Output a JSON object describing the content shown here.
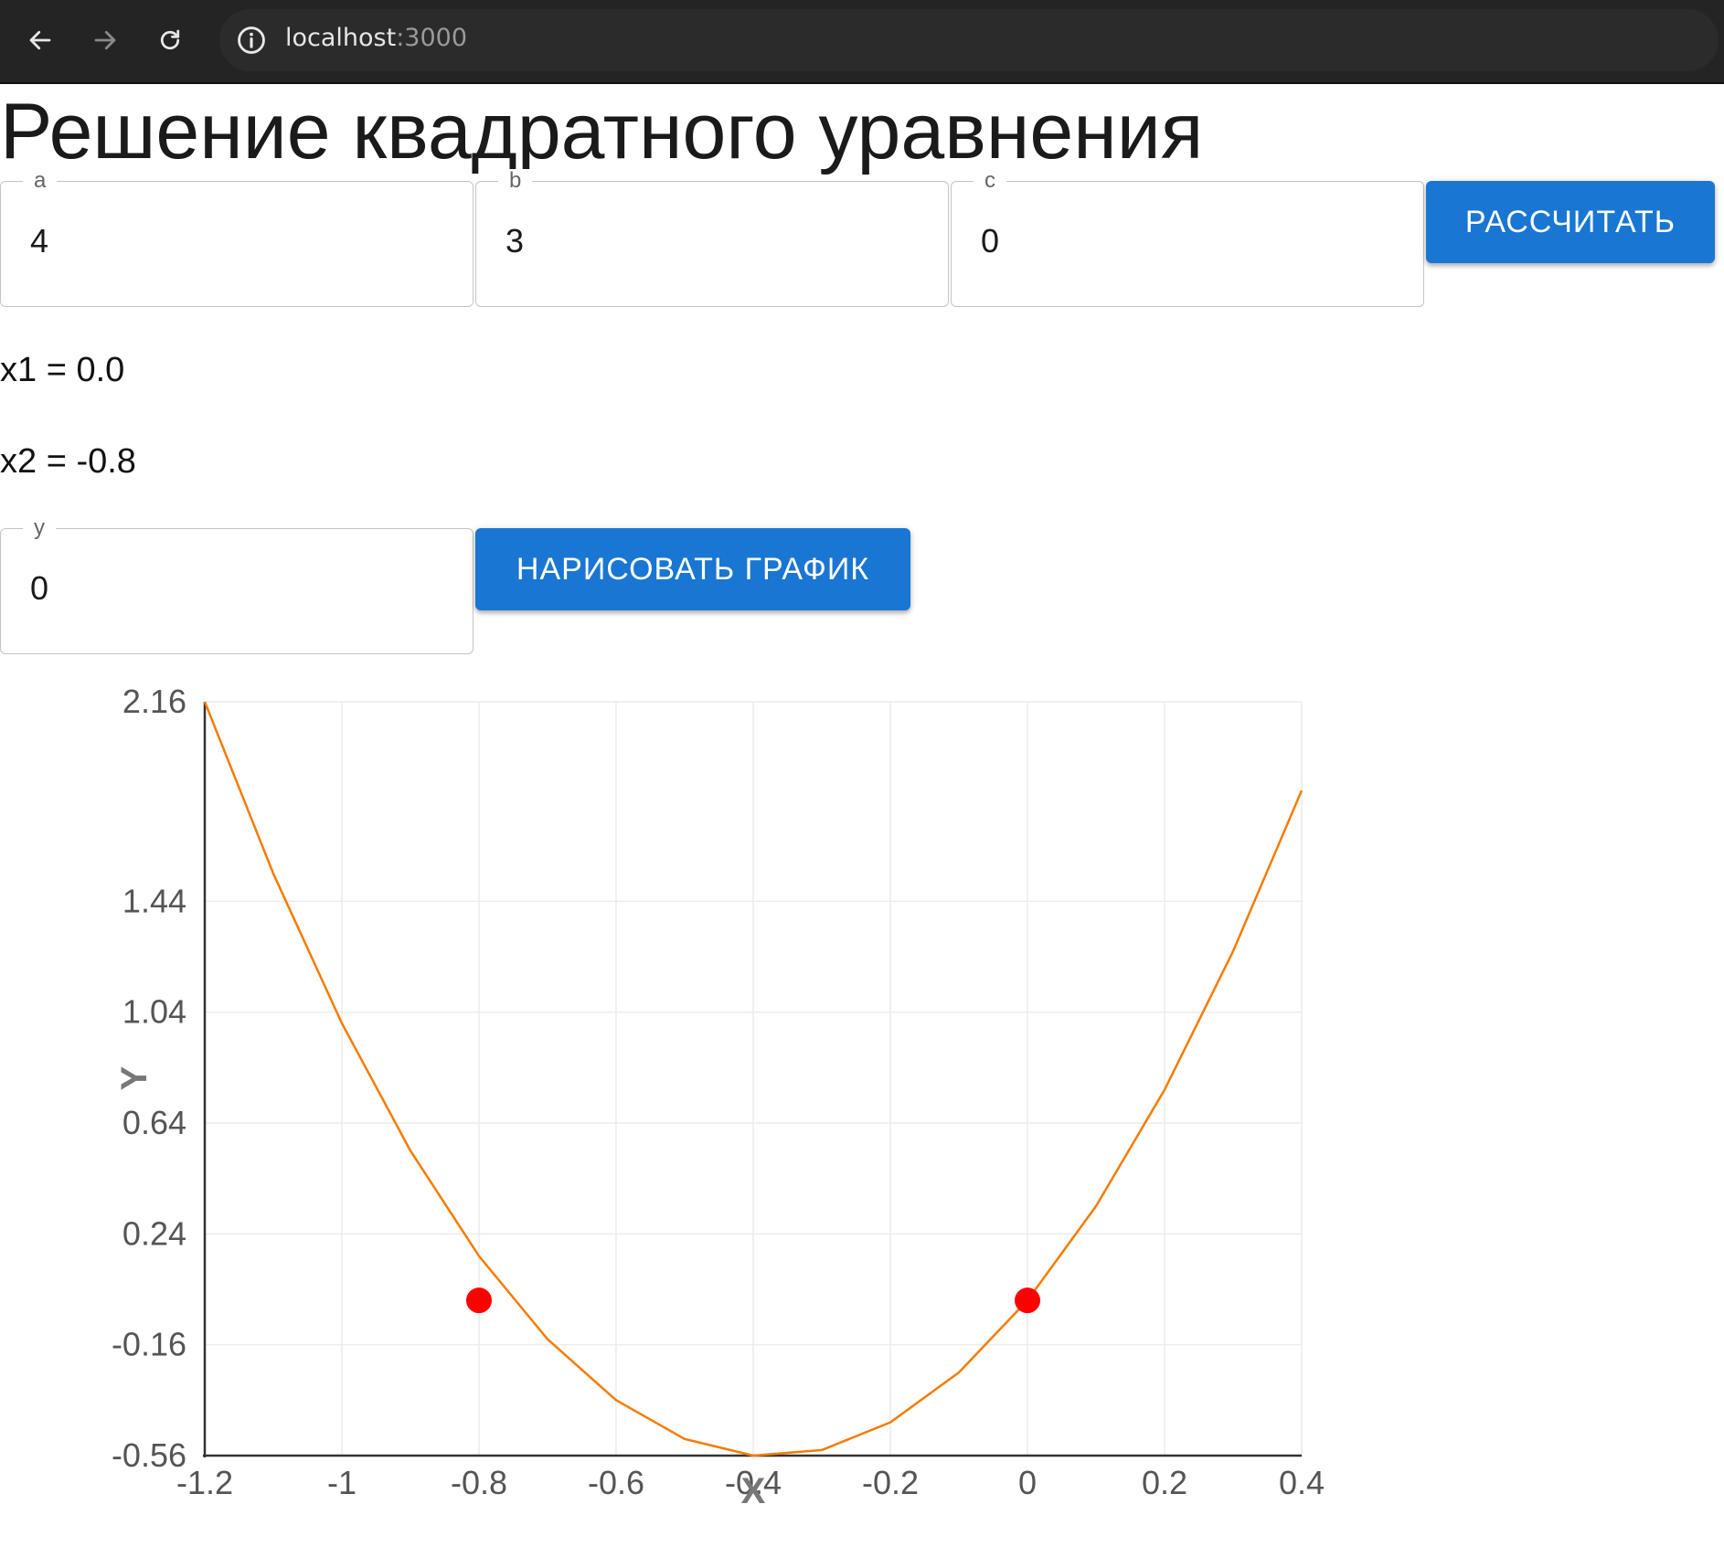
{
  "browser": {
    "url_host": "localhost",
    "url_port": ":3000"
  },
  "page": {
    "title": "Решение квадратного уравнения"
  },
  "inputs": {
    "a": {
      "label": "a",
      "value": "4"
    },
    "b": {
      "label": "b",
      "value": "3"
    },
    "c": {
      "label": "c",
      "value": "0"
    },
    "y": {
      "label": "y",
      "value": "0"
    }
  },
  "buttons": {
    "calculate": "РАССЧИТАТЬ",
    "draw": "НАРИСОВАТЬ ГРАФИК"
  },
  "results": {
    "x1": "x1 = 0.0",
    "x2": "x2 = -0.8"
  },
  "chart_data": {
    "type": "line",
    "xlabel": "X",
    "ylabel": "Y",
    "xlim": [
      -1.2,
      0.4
    ],
    "ylim": [
      -0.56,
      2.16
    ],
    "x_ticks": [
      "-1.2",
      "-1",
      "-0.8",
      "-0.6",
      "-0.4",
      "-0.2",
      "0",
      "0.2",
      "0.4"
    ],
    "y_ticks": [
      "2.16",
      "1.44",
      "1.04",
      "0.64",
      "0.24",
      "-0.16",
      "-0.56"
    ],
    "grid": true,
    "series": [
      {
        "kind": "curve",
        "function": "4*x^2 + 3*x + 0",
        "color": "#f57c00",
        "x": [
          -1.2,
          -1.1,
          -1.0,
          -0.9,
          -0.8,
          -0.7,
          -0.6,
          -0.5,
          -0.4,
          -0.3,
          -0.2,
          -0.1,
          0.0,
          0.1,
          0.2,
          0.3,
          0.4
        ],
        "y": [
          2.16,
          1.54,
          1.0,
          0.54,
          0.16,
          -0.14,
          -0.36,
          -0.5,
          -0.56,
          -0.54,
          -0.44,
          -0.26,
          0.0,
          0.34,
          0.76,
          1.26,
          1.84
        ]
      },
      {
        "kind": "points",
        "color": "#ff0000",
        "points": [
          [
            -0.8,
            0.0
          ],
          [
            0.0,
            0.0
          ]
        ]
      }
    ]
  },
  "colors": {
    "primary": "#1976d2",
    "curve": "#f57c00",
    "roots": "#ff0000"
  }
}
